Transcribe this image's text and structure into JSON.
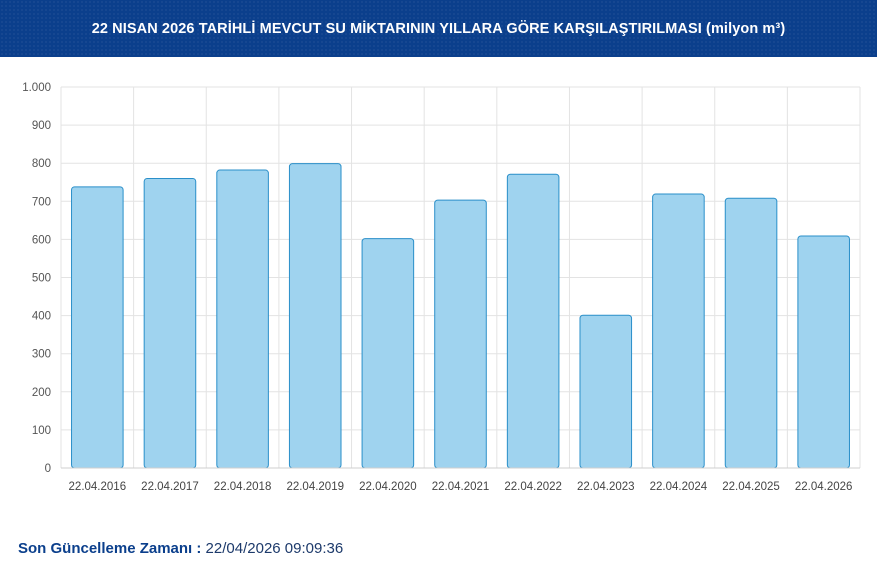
{
  "header": {
    "title": "22 NISAN 2026 TARİHLİ MEVCUT SU MİKTARININ YILLARA GÖRE KARŞILAŞTIRILMASI (milyon m³)"
  },
  "footer": {
    "label": "Son Güncelleme Zamanı :",
    "value": " 22/04/2026 09:09:36"
  },
  "chart_data": {
    "type": "bar",
    "title": "22 NISAN 2026 TARİHLİ MEVCUT SU MİKTARININ YILLARA GÖRE KARŞILAŞTIRILMASI (milyon m³)",
    "categories": [
      "22.04.2016",
      "22.04.2017",
      "22.04.2018",
      "22.04.2019",
      "22.04.2020",
      "22.04.2021",
      "22.04.2022",
      "22.04.2023",
      "22.04.2024",
      "22.04.2025",
      "22.04.2026"
    ],
    "values": [
      738,
      760,
      782,
      799,
      602,
      703,
      771,
      401,
      719,
      708,
      609
    ],
    "ylim": [
      0,
      1000
    ],
    "yticks": [
      0,
      100,
      200,
      300,
      400,
      500,
      600,
      700,
      800,
      900,
      1000
    ],
    "ytick_labels": [
      "0",
      "100",
      "200",
      "300",
      "400",
      "500",
      "600",
      "700",
      "800",
      "900",
      "1.000"
    ],
    "grid": true,
    "colors": {
      "bar_fill": "#9fd3ef",
      "bar_stroke": "#2a8fc9",
      "grid": "#e3e3e3"
    }
  }
}
